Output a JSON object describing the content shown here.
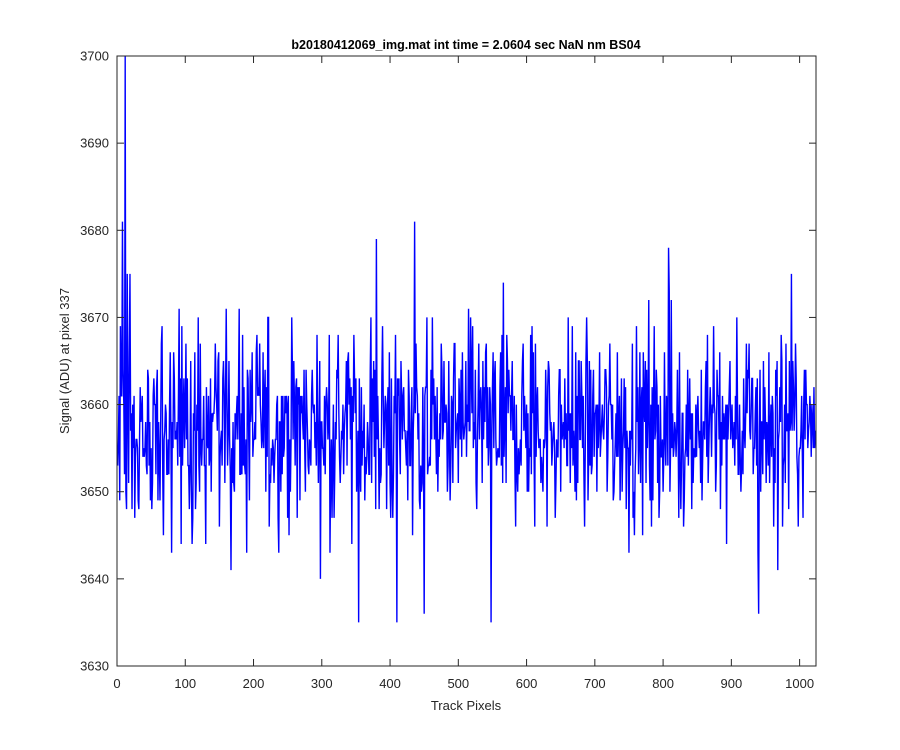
{
  "chart_data": {
    "type": "line",
    "title": "b20180412069_img.mat int time = 2.0604 sec  NaN nm BS04",
    "xlabel": "Track Pixels",
    "ylabel": "Signal (ADU) at pixel 337",
    "xlim": [
      0,
      1024
    ],
    "ylim": [
      3630,
      3700
    ],
    "xticks": [
      0,
      100,
      200,
      300,
      400,
      500,
      600,
      700,
      800,
      900,
      1000
    ],
    "yticks": [
      3630,
      3640,
      3650,
      3660,
      3670,
      3680,
      3690,
      3700
    ],
    "grid": false,
    "legend": "none",
    "series": [
      {
        "color": "#0000ff",
        "x_start": 1,
        "x_step": 1,
        "mean": 3657.5,
        "typical_min": 3643,
        "typical_max": 3673,
        "notable_points": [
          {
            "x": 8,
            "y": 3681
          },
          {
            "x": 12,
            "y": 3700
          },
          {
            "x": 354,
            "y": 3635
          },
          {
            "x": 380,
            "y": 3679
          },
          {
            "x": 410,
            "y": 3635
          },
          {
            "x": 436,
            "y": 3681
          },
          {
            "x": 450,
            "y": 3636
          },
          {
            "x": 548,
            "y": 3635
          },
          {
            "x": 808,
            "y": 3678
          },
          {
            "x": 940,
            "y": 3636
          },
          {
            "x": 988,
            "y": 3675
          }
        ]
      }
    ]
  }
}
